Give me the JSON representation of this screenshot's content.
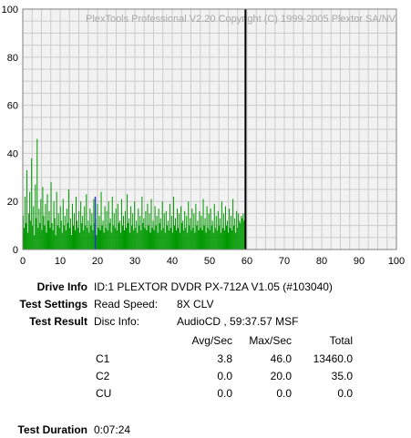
{
  "watermark": "PlexTools Professional V2.20 Copyright (C) 1999-2005 Plextor SA/NV",
  "colors": {
    "plot_bg": "#f2f2f2",
    "grid": "#cccccc",
    "series": "#009900",
    "marker_line": "#000000",
    "marker_blue": "#1f3fbf"
  },
  "chart_data": {
    "type": "bar",
    "xlim": [
      0,
      100
    ],
    "ylim": [
      0,
      100
    ],
    "xticks": [
      0,
      10,
      20,
      30,
      40,
      50,
      60,
      70,
      80,
      90,
      100
    ],
    "yticks": [
      0,
      20,
      40,
      60,
      80,
      100
    ],
    "grid": true,
    "end_marker_x": 59.6,
    "series": [
      {
        "x_start": 0,
        "x_end": 59.6,
        "values": [
          14,
          9,
          22,
          11,
          33,
          7,
          15,
          24,
          12,
          38,
          10,
          18,
          6,
          27,
          13,
          46,
          9,
          17,
          11,
          21,
          8,
          26,
          14,
          10,
          19,
          7,
          23,
          12,
          16,
          9,
          28,
          11,
          8,
          20,
          13,
          6,
          24,
          10,
          15,
          9,
          18,
          12,
          7,
          21,
          10,
          14,
          8,
          17,
          11,
          25,
          9,
          13,
          6,
          19,
          10,
          15,
          8,
          22,
          12,
          9,
          16,
          7,
          20,
          11,
          14,
          8,
          18,
          10,
          23,
          9,
          12,
          7,
          17,
          10,
          15,
          8,
          21,
          11,
          13,
          6,
          19,
          9,
          14,
          8,
          24,
          10,
          12,
          7,
          18,
          9,
          16,
          8,
          20,
          11,
          13,
          7,
          22,
          10,
          15,
          9,
          17,
          8,
          19,
          11,
          12,
          7,
          21,
          10,
          14,
          8,
          16,
          9,
          23,
          11,
          13,
          7,
          18,
          10,
          15,
          8,
          20,
          9,
          12,
          7,
          17,
          10,
          14,
          8,
          22,
          11,
          13,
          9,
          16,
          8,
          19,
          10,
          15,
          7,
          21,
          9,
          12,
          8,
          18,
          10,
          14,
          7,
          17,
          11,
          13,
          8,
          20,
          9,
          15,
          7,
          16,
          10,
          12,
          8,
          19,
          9,
          14,
          7,
          22,
          10,
          13,
          8,
          17,
          9,
          15,
          7,
          18,
          11,
          12,
          8,
          16,
          9,
          14,
          7,
          20,
          10,
          13,
          8,
          17,
          9,
          15,
          7,
          19,
          10,
          12,
          8,
          16,
          9,
          14,
          8,
          21,
          10,
          13,
          7,
          18,
          9,
          15,
          8,
          17,
          10,
          12,
          7,
          19,
          9,
          14,
          8,
          16,
          10,
          13,
          7,
          20,
          9,
          15,
          8,
          18,
          10,
          12,
          7,
          17,
          9,
          14,
          8,
          21,
          10,
          13,
          7,
          16,
          9,
          15,
          12,
          11,
          14,
          13,
          15,
          12,
          16
        ]
      }
    ]
  },
  "info": {
    "drive_label": "Drive Info",
    "drive_value": "ID:1 PLEXTOR DVDR PX-712A V1.05 (#103040)",
    "settings_label": "Test Settings",
    "settings_key": "Read Speed:",
    "settings_value": "8X CLV",
    "result_label": "Test Result",
    "result_key": "Disc Info:",
    "result_value": "AudioCD , 59:37.57 MSF",
    "duration_label": "Test Duration",
    "duration_value": "0:07:24"
  },
  "stats": {
    "headers": {
      "avg": "Avg/Sec",
      "max": "Max/Sec",
      "total": "Total"
    },
    "rows": [
      {
        "name": "C1",
        "avg": "3.8",
        "max": "46.0",
        "total": "13460.0"
      },
      {
        "name": "C2",
        "avg": "0.0",
        "max": "20.0",
        "total": "35.0"
      },
      {
        "name": "CU",
        "avg": "0.0",
        "max": "0.0",
        "total": "0.0"
      }
    ]
  }
}
